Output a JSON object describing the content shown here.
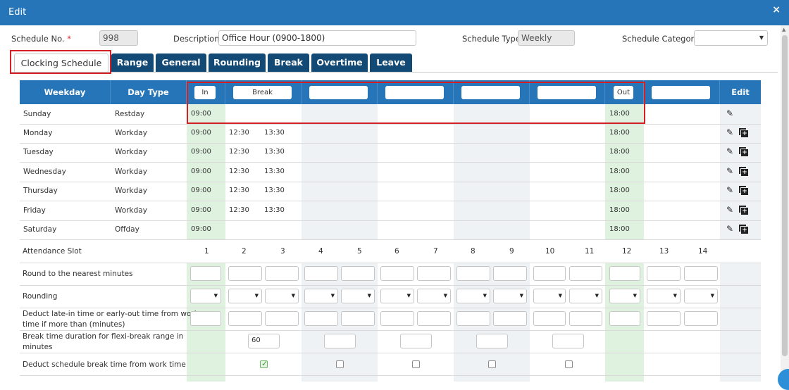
{
  "window": {
    "title": "Edit",
    "close_glyph": "×"
  },
  "header": {
    "schedule_no_label": "Schedule No.",
    "schedule_no_required": "*",
    "schedule_no_value": "998",
    "description_label": "Description",
    "description_value": "Office Hour (0900-1800)",
    "schedule_type_label": "Schedule Type",
    "schedule_type_value": "Weekly",
    "schedule_category_label": "Schedule Category",
    "schedule_category_value": ""
  },
  "tabs": [
    {
      "label": "Clocking Schedule",
      "active": true
    },
    {
      "label": "Range"
    },
    {
      "label": "General"
    },
    {
      "label": "Rounding"
    },
    {
      "label": "Break"
    },
    {
      "label": "Overtime"
    },
    {
      "label": "Leave"
    }
  ],
  "grid": {
    "weekday_header": "Weekday",
    "daytype_header": "Day Type",
    "in_label": "In",
    "break_label": "Break",
    "out_label": "Out",
    "edit_header": "Edit",
    "rows": [
      {
        "weekday": "Sunday",
        "daytype": "Restday",
        "in": "09:00",
        "break_start": "",
        "break_end": "",
        "out": "18:00"
      },
      {
        "weekday": "Monday",
        "daytype": "Workday",
        "in": "09:00",
        "break_start": "12:30",
        "break_end": "13:30",
        "out": "18:00"
      },
      {
        "weekday": "Tuesday",
        "daytype": "Workday",
        "in": "09:00",
        "break_start": "12:30",
        "break_end": "13:30",
        "out": "18:00"
      },
      {
        "weekday": "Wednesday",
        "daytype": "Workday",
        "in": "09:00",
        "break_start": "12:30",
        "break_end": "13:30",
        "out": "18:00"
      },
      {
        "weekday": "Thursday",
        "daytype": "Workday",
        "in": "09:00",
        "break_start": "12:30",
        "break_end": "13:30",
        "out": "18:00"
      },
      {
        "weekday": "Friday",
        "daytype": "Workday",
        "in": "09:00",
        "break_start": "12:30",
        "break_end": "13:30",
        "out": "18:00"
      },
      {
        "weekday": "Saturday",
        "daytype": "Offday",
        "in": "09:00",
        "break_start": "",
        "break_end": "",
        "out": "18:00"
      }
    ]
  },
  "lower": {
    "attendance_slot_label": "Attendance Slot",
    "slots": [
      "1",
      "2",
      "3",
      "4",
      "5",
      "6",
      "7",
      "8",
      "9",
      "10",
      "11",
      "12",
      "13",
      "14"
    ],
    "round_label": "Round to the nearest minutes",
    "rounding_label": "Rounding",
    "deduct_late_label_1": "Deduct late-in time or early-out time from work",
    "deduct_late_label_2": "time if more than (minutes)",
    "break_duration_label_1": "Break time duration for flexi-break range in",
    "break_duration_label_2": "minutes",
    "break_duration_value": "60",
    "deduct_break_label": "Deduct schedule break time from work time"
  },
  "icons": {
    "edit": "pencil-icon",
    "copy": "copy-add-icon",
    "check": "✓"
  },
  "colors": {
    "header_blue": "#2675b8",
    "tab_navy": "#134a75",
    "green_col": "#dff2df",
    "gray_col": "#eef2f5",
    "highlight_red": "#d31f26"
  }
}
